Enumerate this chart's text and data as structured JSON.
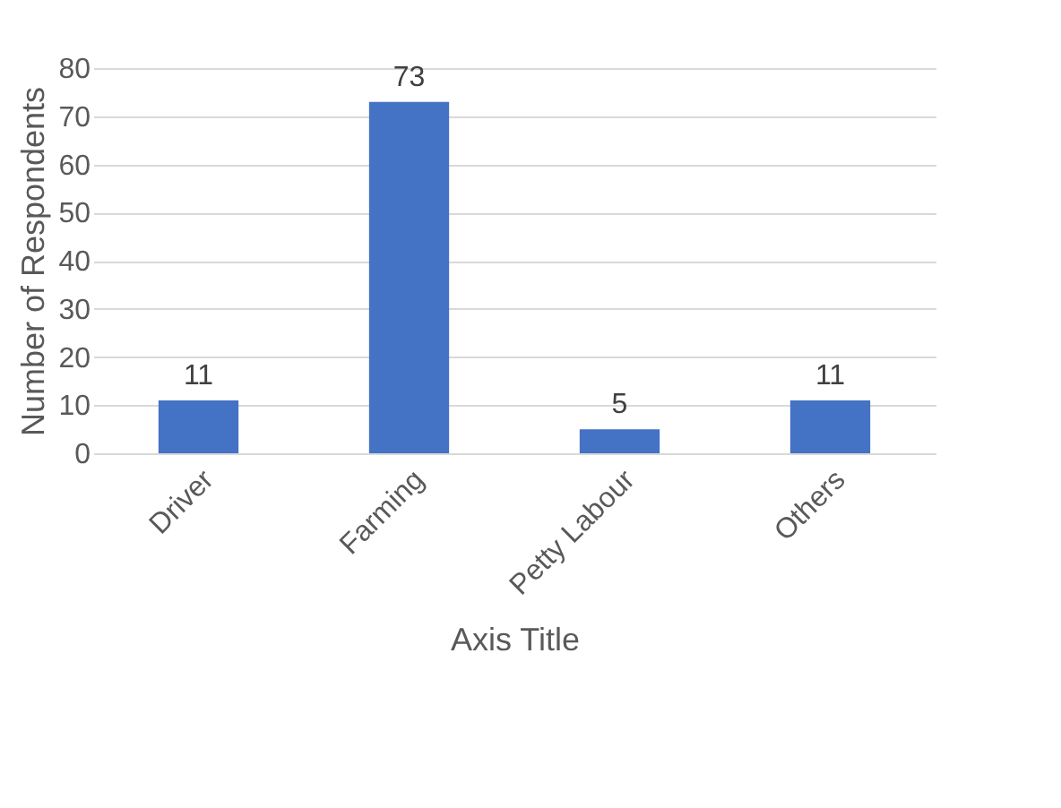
{
  "chart_data": {
    "type": "bar",
    "xlabel": "Axis Title",
    "ylabel": "Number of Respondents",
    "categories": [
      "Driver",
      "Farming",
      "Petty Labour",
      "Others"
    ],
    "values": [
      11,
      73,
      5,
      11
    ],
    "color": "#4472c4",
    "ylim": [
      0,
      80
    ],
    "yticks": [
      0,
      10,
      20,
      30,
      40,
      50,
      60,
      70,
      80
    ],
    "grid": "y",
    "data_labels": true
  }
}
